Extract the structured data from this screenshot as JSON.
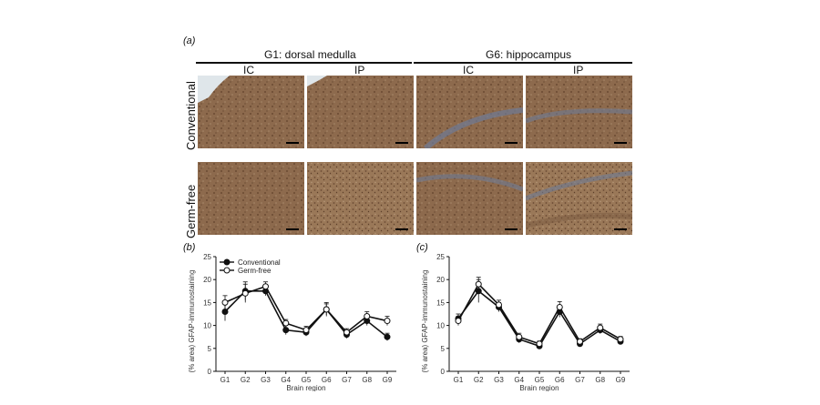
{
  "panel_a": {
    "letter": "(a)",
    "groups": [
      {
        "title": "G1: dorsal medulla",
        "cols": [
          "IC",
          "IP"
        ]
      },
      {
        "title": "G6: hippocampus",
        "cols": [
          "IC",
          "IP"
        ]
      }
    ],
    "rows": [
      "Conventional",
      "Germ-free"
    ],
    "colors": {
      "tissue": "#8d6a4d",
      "tissue_dark": "#6b4a33",
      "tissue_light": "#a8896a",
      "background": "#dfe6ea"
    }
  },
  "chart_data": [
    {
      "type": "line",
      "panel": "(b)",
      "categories": [
        "G1",
        "G2",
        "G3",
        "G4",
        "G5",
        "G6",
        "G7",
        "G8",
        "G9"
      ],
      "series": [
        {
          "name": "Conventional",
          "values": [
            13,
            17.5,
            17.5,
            9,
            8.5,
            13.5,
            8,
            11,
            7.5
          ],
          "errors": [
            2,
            2,
            1,
            1,
            0.8,
            1.5,
            0.8,
            1,
            0.8
          ],
          "marker": "filled"
        },
        {
          "name": "Germ-free",
          "values": [
            15,
            17,
            18.5,
            10.5,
            9,
            13.5,
            8.5,
            12,
            11
          ],
          "errors": [
            1.5,
            2,
            1,
            0.8,
            0.8,
            1.2,
            0.8,
            1,
            1
          ],
          "marker": "open"
        }
      ],
      "ylim": [
        0,
        25
      ],
      "yticks": [
        "0",
        "5",
        "10",
        "15",
        "20",
        "25"
      ],
      "xlabel": "Brain region",
      "ylabel": "(% area) GFAP-immunostaining",
      "legend_position": "top-left"
    },
    {
      "type": "line",
      "panel": "(c)",
      "categories": [
        "G1",
        "G2",
        "G3",
        "G4",
        "G5",
        "G6",
        "G7",
        "G8",
        "G9"
      ],
      "series": [
        {
          "name": "Conventional",
          "values": [
            11.5,
            17.5,
            14,
            7,
            5.5,
            13,
            6,
            9,
            6.5
          ],
          "errors": [
            1,
            2.5,
            1,
            0.8,
            0.6,
            1.2,
            0.6,
            0.8,
            0.6
          ],
          "marker": "filled"
        },
        {
          "name": "Germ-free",
          "values": [
            11,
            19,
            14.5,
            7.5,
            6,
            14,
            6.5,
            9.5,
            7
          ],
          "errors": [
            1,
            1.5,
            1,
            0.8,
            0.6,
            1.2,
            0.6,
            0.8,
            0.6
          ],
          "marker": "open"
        }
      ],
      "ylim": [
        0,
        25
      ],
      "yticks": [
        "0",
        "5",
        "10",
        "15",
        "20",
        "25"
      ],
      "xlabel": "Brain region",
      "ylabel": "(% area) GFAP-immunostaining"
    }
  ]
}
